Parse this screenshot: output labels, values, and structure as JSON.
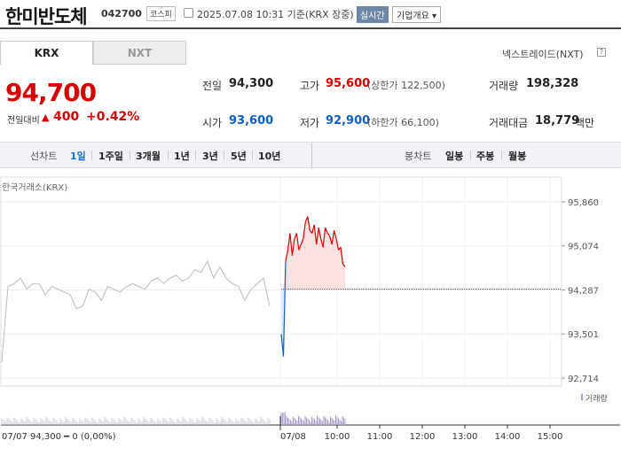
{
  "header": {
    "stock_name": "한미반도체",
    "stock_code": "042700",
    "market": "코스피",
    "timestamp": "2025.07.08 10:31 기준(KRX 장중)",
    "realtime": "실시간",
    "company_overview": "기업개요 ▾"
  },
  "tabs": [
    {
      "label": "KRX"
    },
    {
      "label": "NXT"
    }
  ],
  "nxt_link": "넥스트레이드(NXT)",
  "nxt_help": "?",
  "quote": {
    "price": "94,700",
    "change_label": "전일대비",
    "change_arrow": "▲",
    "change": "400",
    "change_pct": "+0.42%"
  },
  "stats": {
    "prev_label": "전일",
    "prev_value": "94,300",
    "high_label": "고가",
    "high_value": "95,600",
    "upper_limit": "(상한가 122,500)",
    "volume_label": "거래량",
    "volume_value": "198,328",
    "open_label": "시가",
    "open_value": "93,600",
    "low_label": "저가",
    "low_value": "92,900",
    "lower_limit": "(하한가 66,100)",
    "amount_label": "거래대금",
    "amount_value": "18,779",
    "amount_unit": "백만"
  },
  "periods": {
    "line_label": "선차트",
    "line_items": [
      "1일",
      "1주일",
      "3개월",
      "1년",
      "3년",
      "5년",
      "10년"
    ],
    "candle_label": "봉차트",
    "candle_items": [
      "일봉",
      "주봉",
      "월봉"
    ]
  },
  "colors": {
    "up": "#d60000",
    "down": "#1060c0",
    "prev_line": "#555555"
  },
  "chart_data": {
    "type": "line",
    "source_label": "한국거래소(KRX)",
    "y_ticks": [
      "95,860",
      "95,074",
      "94,287",
      "93,501",
      "92,714"
    ],
    "y_values": [
      95860,
      95074,
      94287,
      93501,
      92714
    ],
    "x_ticks": [
      "10:00",
      "11:00",
      "12:00",
      "13:00",
      "14:00",
      "15:00"
    ],
    "prev_day_label": "07/07",
    "prev_day_summary": "94,300 ━ 0 (0,00%)",
    "today_label": "07/08",
    "volume_legend": "거래량",
    "prev_close": 94300,
    "prev_day_series": [
      93000,
      94350,
      94400,
      94500,
      94300,
      94400,
      94400,
      94200,
      94350,
      94300,
      94250,
      94200,
      93950,
      94000,
      94300,
      94250,
      94100,
      94350,
      94300,
      94250,
      94350,
      94400,
      94350,
      94300,
      94450,
      94500,
      94400,
      94500,
      94550,
      94450,
      94500,
      94650,
      94600,
      94800,
      94500,
      94700,
      94500,
      94400,
      94350,
      94100,
      94300,
      94400,
      94500,
      94000
    ],
    "today_series": [
      93500,
      93100,
      94800,
      95000,
      95300,
      94900,
      95200,
      95300,
      95000,
      95100,
      95200,
      95500,
      95600,
      95350,
      95300,
      95450,
      95100,
      95400,
      95200,
      95050,
      95400,
      95300,
      95250,
      95100,
      95350,
      95200,
      95000,
      95050,
      94750,
      94700
    ]
  }
}
